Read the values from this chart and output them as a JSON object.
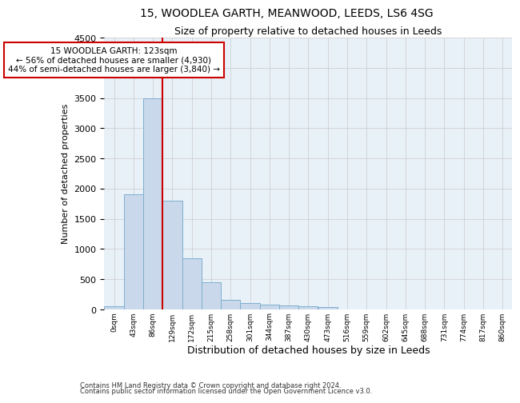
{
  "title1": "15, WOODLEA GARTH, MEANWOOD, LEEDS, LS6 4SG",
  "title2": "Size of property relative to detached houses in Leeds",
  "xlabel": "Distribution of detached houses by size in Leeds",
  "ylabel": "Number of detached properties",
  "footnote1": "Contains HM Land Registry data © Crown copyright and database right 2024.",
  "footnote2": "Contains public sector information licensed under the Open Government Licence v3.0.",
  "bin_labels": [
    "0sqm",
    "43sqm",
    "86sqm",
    "129sqm",
    "172sqm",
    "215sqm",
    "258sqm",
    "301sqm",
    "344sqm",
    "387sqm",
    "430sqm",
    "473sqm",
    "516sqm",
    "559sqm",
    "602sqm",
    "645sqm",
    "688sqm",
    "731sqm",
    "774sqm",
    "817sqm",
    "860sqm"
  ],
  "bar_heights": [
    50,
    1900,
    3500,
    1800,
    850,
    450,
    160,
    110,
    80,
    60,
    50,
    40,
    0,
    0,
    0,
    0,
    0,
    0,
    0,
    0,
    0
  ],
  "bar_color": "#c9d9eb",
  "bar_edge_color": "#7faece",
  "vline_color": "#cc0000",
  "annotation_text": "15 WOODLEA GARTH: 123sqm\n← 56% of detached houses are smaller (4,930)\n44% of semi-detached houses are larger (3,840) →",
  "annotation_box_color": "#ffffff",
  "annotation_box_edge": "#cc0000",
  "ylim": [
    0,
    4500
  ],
  "yticks": [
    0,
    500,
    1000,
    1500,
    2000,
    2500,
    3000,
    3500,
    4000,
    4500
  ],
  "bg_color": "#ffffff",
  "grid_color": "#cccccc",
  "title1_fontsize": 10,
  "title2_fontsize": 9,
  "footnote_fontsize": 6,
  "ylabel_fontsize": 8,
  "xlabel_fontsize": 9,
  "bar_width": 1.0,
  "vline_pos": 3.0
}
